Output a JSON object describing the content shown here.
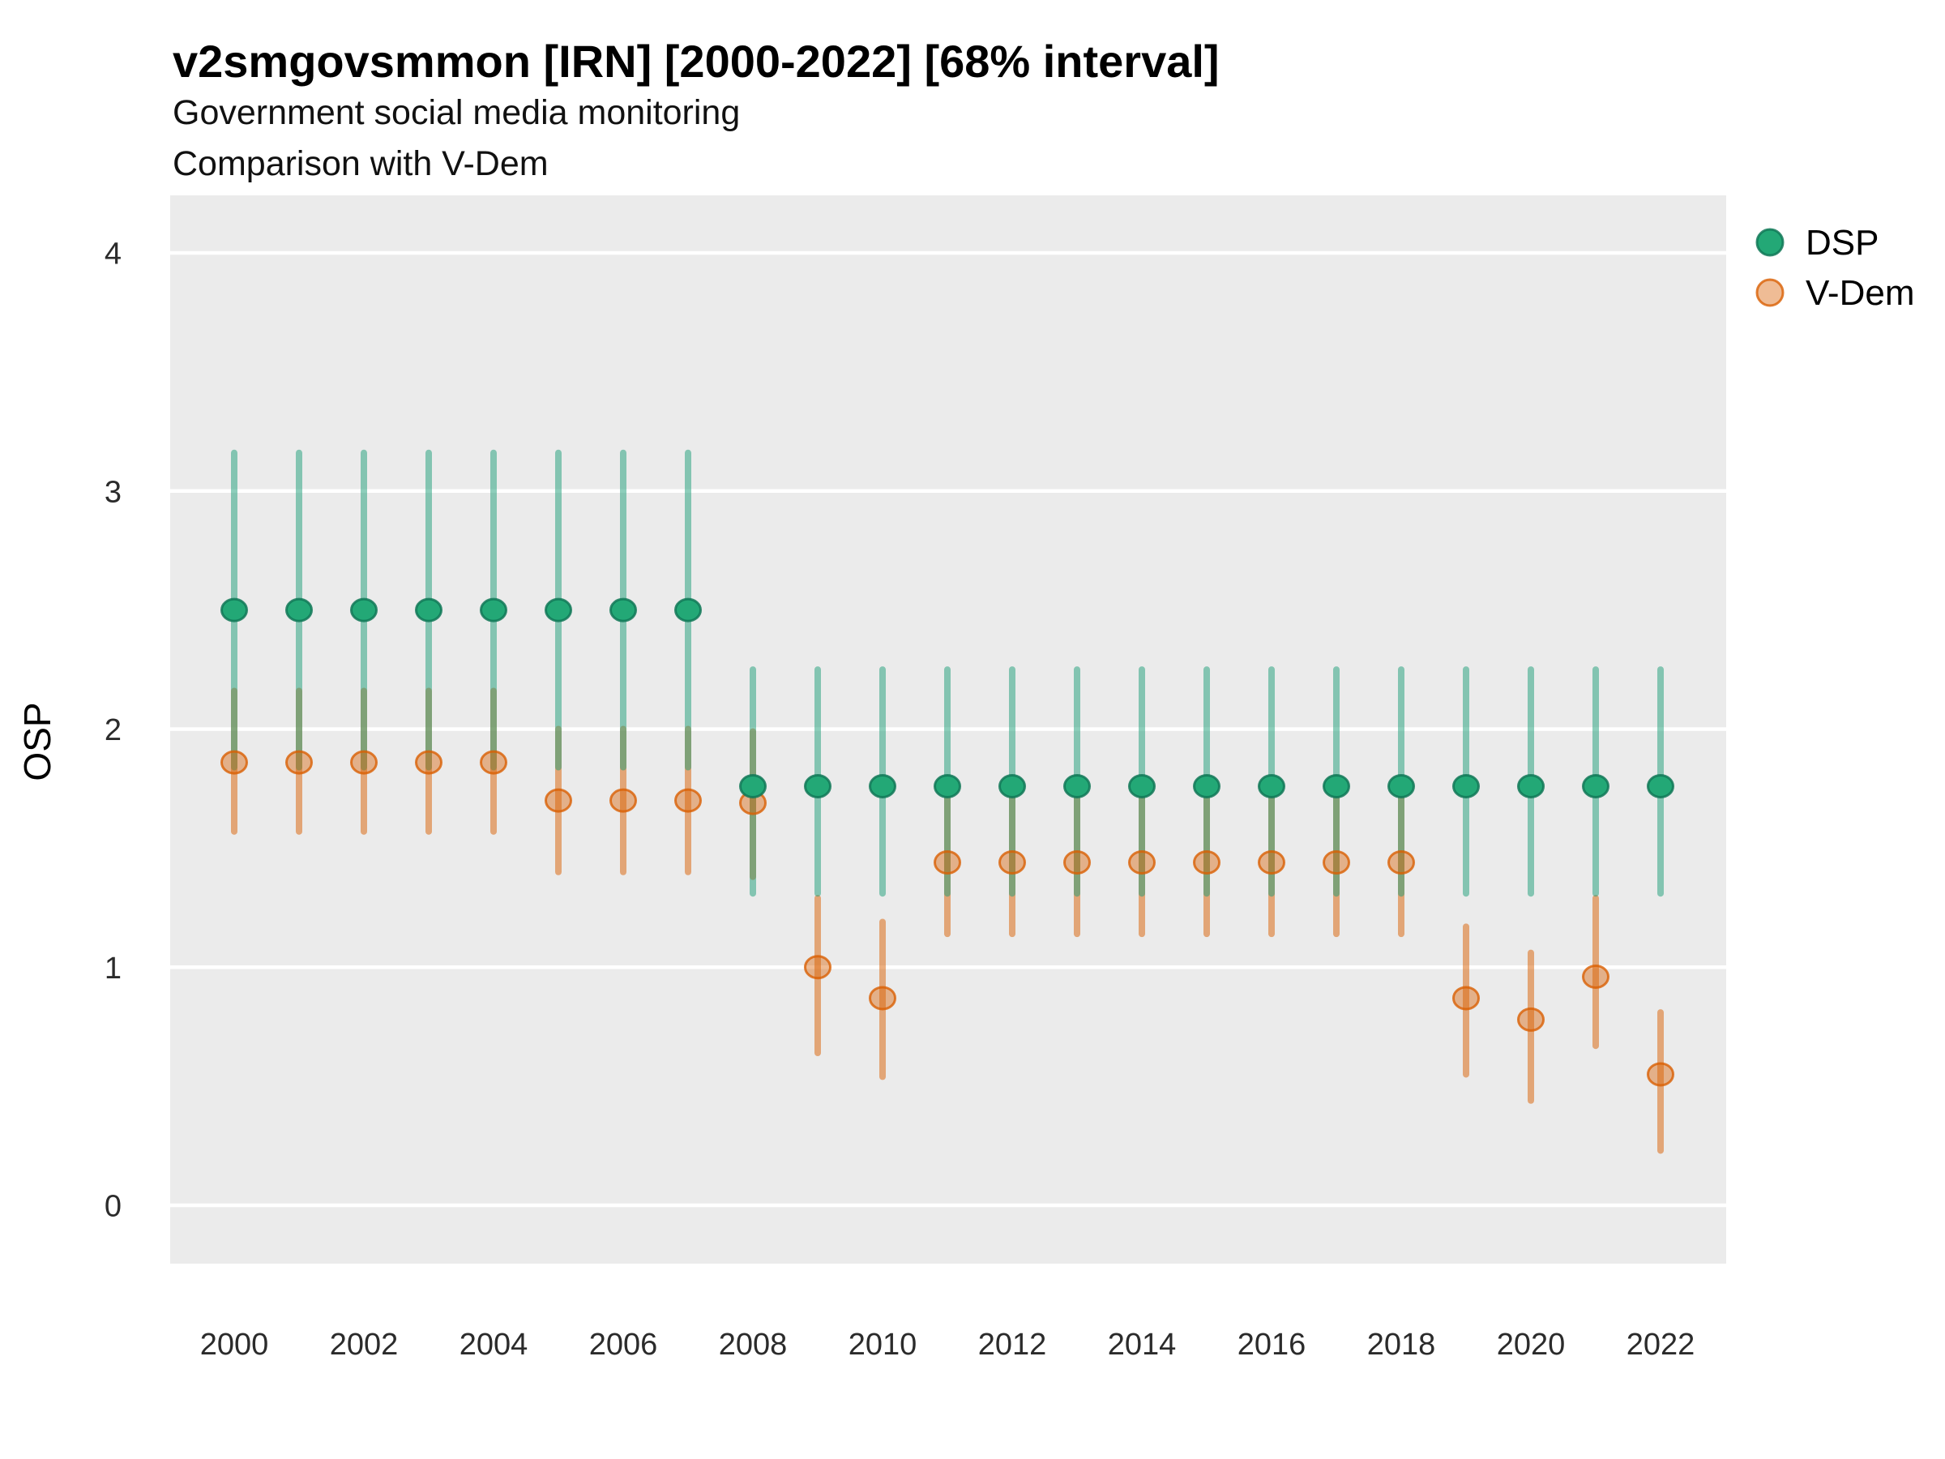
{
  "chart_data": {
    "type": "pointrange-scatter",
    "title": "v2smgovsmmon [IRN] [2000-2022] [68% interval]",
    "subtitle1": "Government social media monitoring",
    "subtitle2": "Comparison with V-Dem",
    "xlabel": "",
    "ylabel": "OSP",
    "x_start": 2000,
    "x_end": 2022,
    "x_ticks": [
      2000,
      2002,
      2004,
      2006,
      2008,
      2010,
      2012,
      2014,
      2016,
      2018,
      2020,
      2022
    ],
    "y_ticks": [
      0,
      1,
      2,
      3,
      4
    ],
    "ylim": [
      -0.25,
      4.25
    ],
    "grid": "major-horizontal-only",
    "legend_position": "right",
    "panel_bg": "#EBEBEB",
    "gridline_color": "#FFFFFF",
    "series": [
      {
        "id": "dsp",
        "name": "DSP",
        "bar_color": "rgba(27,158,119,0.5)",
        "point_fill": "#23A876",
        "point_stroke": "rgba(16,120,87,0.85)",
        "points": [
          {
            "x": 2000,
            "y": 2.5,
            "lo": 1.84,
            "hi": 3.16
          },
          {
            "x": 2001,
            "y": 2.5,
            "lo": 1.84,
            "hi": 3.16
          },
          {
            "x": 2002,
            "y": 2.5,
            "lo": 1.84,
            "hi": 3.16
          },
          {
            "x": 2003,
            "y": 2.5,
            "lo": 1.84,
            "hi": 3.16
          },
          {
            "x": 2004,
            "y": 2.5,
            "lo": 1.84,
            "hi": 3.16
          },
          {
            "x": 2005,
            "y": 2.5,
            "lo": 1.84,
            "hi": 3.16
          },
          {
            "x": 2006,
            "y": 2.5,
            "lo": 1.84,
            "hi": 3.16
          },
          {
            "x": 2007,
            "y": 2.5,
            "lo": 1.84,
            "hi": 3.16
          },
          {
            "x": 2008,
            "y": 1.76,
            "lo": 1.31,
            "hi": 2.25
          },
          {
            "x": 2009,
            "y": 1.76,
            "lo": 1.31,
            "hi": 2.25
          },
          {
            "x": 2010,
            "y": 1.76,
            "lo": 1.31,
            "hi": 2.25
          },
          {
            "x": 2011,
            "y": 1.76,
            "lo": 1.31,
            "hi": 2.25
          },
          {
            "x": 2012,
            "y": 1.76,
            "lo": 1.31,
            "hi": 2.25
          },
          {
            "x": 2013,
            "y": 1.76,
            "lo": 1.31,
            "hi": 2.25
          },
          {
            "x": 2014,
            "y": 1.76,
            "lo": 1.31,
            "hi": 2.25
          },
          {
            "x": 2015,
            "y": 1.76,
            "lo": 1.31,
            "hi": 2.25
          },
          {
            "x": 2016,
            "y": 1.76,
            "lo": 1.31,
            "hi": 2.25
          },
          {
            "x": 2017,
            "y": 1.76,
            "lo": 1.31,
            "hi": 2.25
          },
          {
            "x": 2018,
            "y": 1.76,
            "lo": 1.31,
            "hi": 2.25
          },
          {
            "x": 2019,
            "y": 1.76,
            "lo": 1.31,
            "hi": 2.25
          },
          {
            "x": 2020,
            "y": 1.76,
            "lo": 1.31,
            "hi": 2.25
          },
          {
            "x": 2021,
            "y": 1.76,
            "lo": 1.31,
            "hi": 2.25
          },
          {
            "x": 2022,
            "y": 1.76,
            "lo": 1.31,
            "hi": 2.25
          }
        ]
      },
      {
        "id": "vdem",
        "name": "V-Dem",
        "bar_color": "rgba(217,95,2,0.5)",
        "point_fill": "rgba(217,95,2,0.42)",
        "point_stroke": "rgba(217,95,2,0.8)",
        "points": [
          {
            "x": 2000,
            "y": 1.86,
            "lo": 1.57,
            "hi": 2.16
          },
          {
            "x": 2001,
            "y": 1.86,
            "lo": 1.57,
            "hi": 2.16
          },
          {
            "x": 2002,
            "y": 1.86,
            "lo": 1.57,
            "hi": 2.16
          },
          {
            "x": 2003,
            "y": 1.86,
            "lo": 1.57,
            "hi": 2.16
          },
          {
            "x": 2004,
            "y": 1.86,
            "lo": 1.57,
            "hi": 2.16
          },
          {
            "x": 2005,
            "y": 1.7,
            "lo": 1.4,
            "hi": 2.0
          },
          {
            "x": 2006,
            "y": 1.7,
            "lo": 1.4,
            "hi": 2.0
          },
          {
            "x": 2007,
            "y": 1.7,
            "lo": 1.4,
            "hi": 2.0
          },
          {
            "x": 2008,
            "y": 1.69,
            "lo": 1.38,
            "hi": 1.99
          },
          {
            "x": 2009,
            "y": 1.0,
            "lo": 0.64,
            "hi": 1.29
          },
          {
            "x": 2010,
            "y": 0.87,
            "lo": 0.54,
            "hi": 1.19
          },
          {
            "x": 2011,
            "y": 1.44,
            "lo": 1.14,
            "hi": 1.72
          },
          {
            "x": 2012,
            "y": 1.44,
            "lo": 1.14,
            "hi": 1.72
          },
          {
            "x": 2013,
            "y": 1.44,
            "lo": 1.14,
            "hi": 1.72
          },
          {
            "x": 2014,
            "y": 1.44,
            "lo": 1.14,
            "hi": 1.72
          },
          {
            "x": 2015,
            "y": 1.44,
            "lo": 1.14,
            "hi": 1.72
          },
          {
            "x": 2016,
            "y": 1.44,
            "lo": 1.14,
            "hi": 1.72
          },
          {
            "x": 2017,
            "y": 1.44,
            "lo": 1.14,
            "hi": 1.72
          },
          {
            "x": 2018,
            "y": 1.44,
            "lo": 1.14,
            "hi": 1.72
          },
          {
            "x": 2019,
            "y": 0.87,
            "lo": 0.55,
            "hi": 1.17
          },
          {
            "x": 2020,
            "y": 0.78,
            "lo": 0.44,
            "hi": 1.06
          },
          {
            "x": 2021,
            "y": 0.96,
            "lo": 0.67,
            "hi": 1.29
          },
          {
            "x": 2022,
            "y": 0.55,
            "lo": 0.23,
            "hi": 0.81
          }
        ]
      }
    ]
  }
}
